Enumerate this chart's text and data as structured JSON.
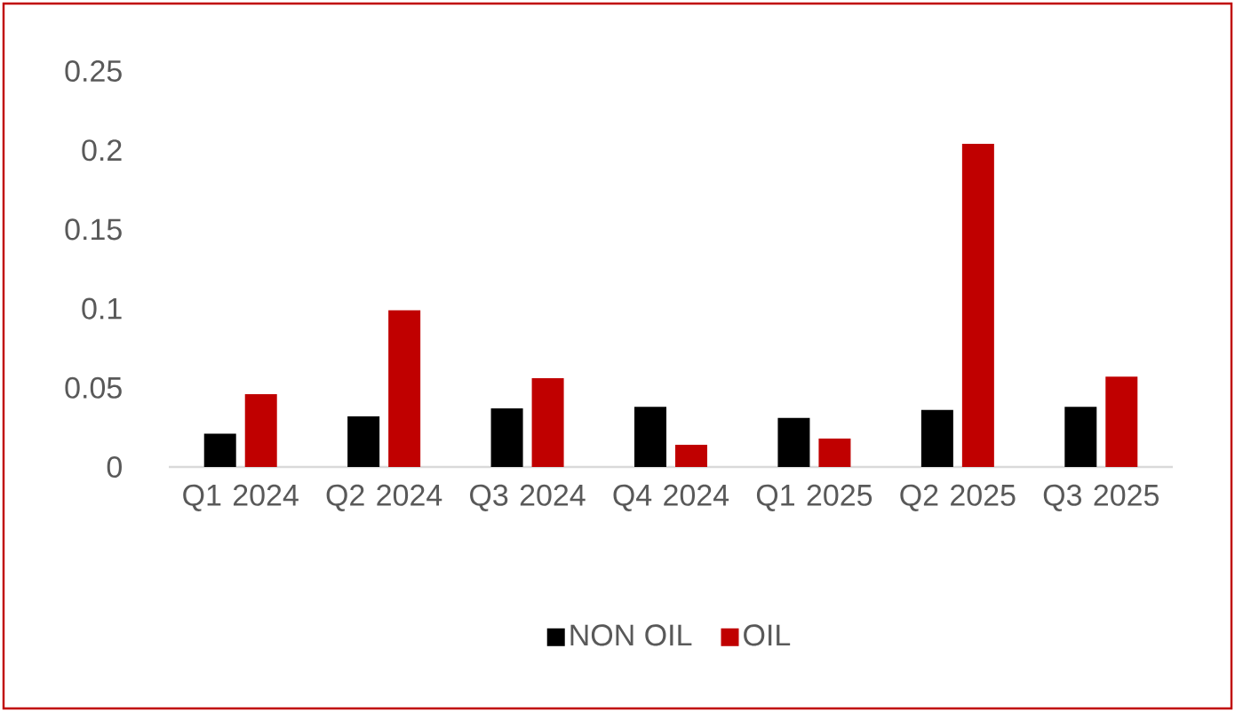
{
  "chart_data": {
    "type": "bar",
    "categories": [
      "Q1 2024",
      "Q2 2024",
      "Q3 2024",
      "Q4 2024",
      "Q1 2025",
      "Q2 2025",
      "Q3 2025"
    ],
    "series": [
      {
        "name": "NON OIL",
        "color": "#000000",
        "values": [
          0.021,
          0.032,
          0.037,
          0.038,
          0.031,
          0.036,
          0.038
        ]
      },
      {
        "name": "OIL",
        "color": "#c00000",
        "values": [
          0.046,
          0.099,
          0.056,
          0.014,
          0.018,
          0.204,
          0.057
        ]
      }
    ],
    "ylim": [
      0,
      0.25
    ],
    "yticks": [
      0,
      0.05,
      0.1,
      0.15,
      0.2,
      0.25
    ],
    "grid": false,
    "legend": "bottom"
  }
}
